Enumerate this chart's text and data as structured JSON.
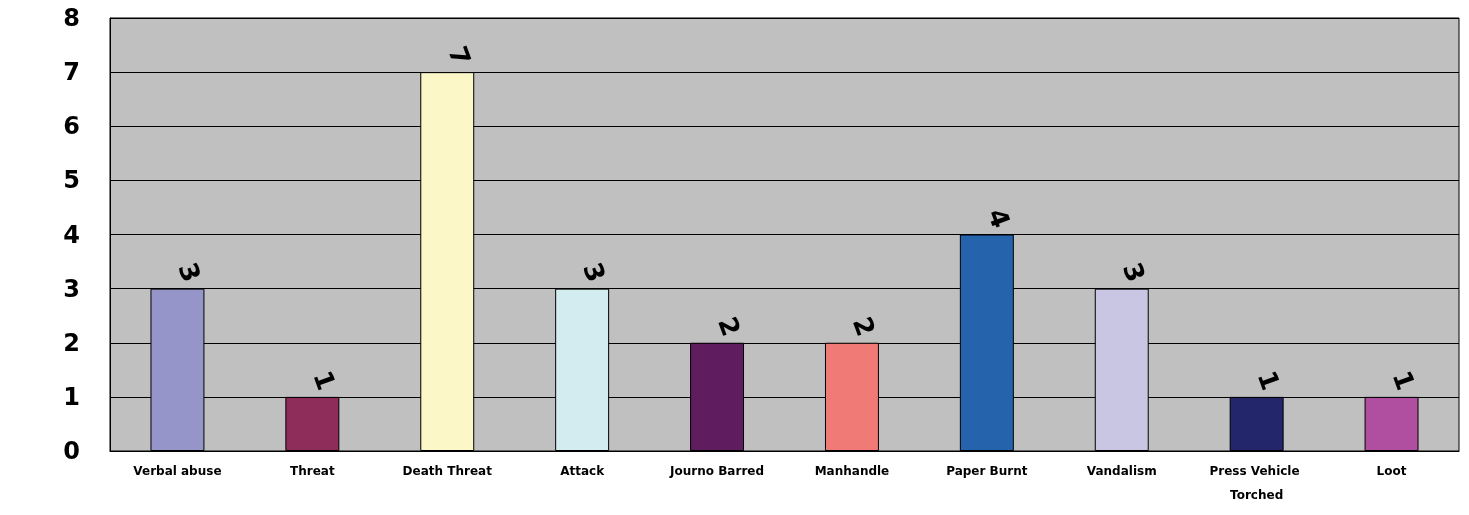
{
  "chart_data": {
    "type": "bar",
    "categories": [
      "Verbal abuse",
      "Threat",
      "Death Threat",
      "Attack",
      "Journo Barred",
      "Manhandle",
      "Paper Burnt",
      "Vandalism",
      "Press Vehicle Torched",
      "Loot"
    ],
    "values": [
      3,
      1,
      7,
      3,
      2,
      2,
      4,
      3,
      1,
      1
    ],
    "colors": [
      "#9595c9",
      "#8f2d5a",
      "#fbf7c6",
      "#d2ecf0",
      "#5f1c5e",
      "#f07b76",
      "#2563ad",
      "#c9c6e4",
      "#24266b",
      "#b04fa0"
    ],
    "ylim": [
      0,
      8
    ],
    "yticks": [
      0,
      1,
      2,
      3,
      4,
      5,
      6,
      7,
      8
    ],
    "grid": "y",
    "data_labels": true
  }
}
